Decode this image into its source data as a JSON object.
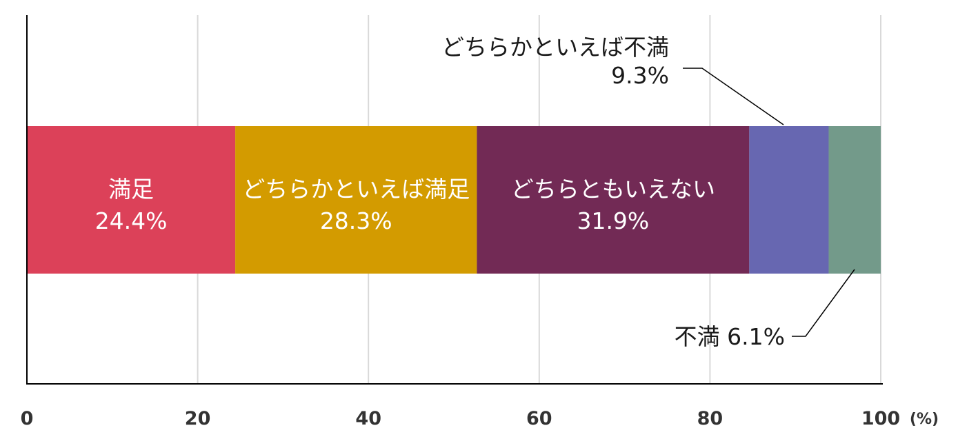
{
  "chart_data": {
    "type": "bar",
    "orientation": "horizontal-stacked",
    "categories": [
      "満足",
      "どちらかといえば満足",
      "どちらともいえない",
      "どちらかといえば不満",
      "不満"
    ],
    "values": [
      24.4,
      28.3,
      31.9,
      9.3,
      6.1
    ],
    "value_labels": [
      "24.4%",
      "28.3%",
      "31.9%",
      "9.3%",
      "6.1%"
    ],
    "colors": [
      "#dc4159",
      "#d39b00",
      "#722a55",
      "#6767b1",
      "#739a8a"
    ],
    "xlim": [
      0,
      100
    ],
    "xticks": [
      "0",
      "20",
      "40",
      "60",
      "80",
      "100"
    ],
    "x_unit": "(%)",
    "grid": "vertical",
    "legend": "none (labels inside bars and callouts)"
  },
  "callouts": {
    "somewhat_dissatisfied": {
      "name": "どちらかといえば不満",
      "value": "9.3%"
    },
    "dissatisfied": {
      "text": "不満 6.1%"
    }
  }
}
